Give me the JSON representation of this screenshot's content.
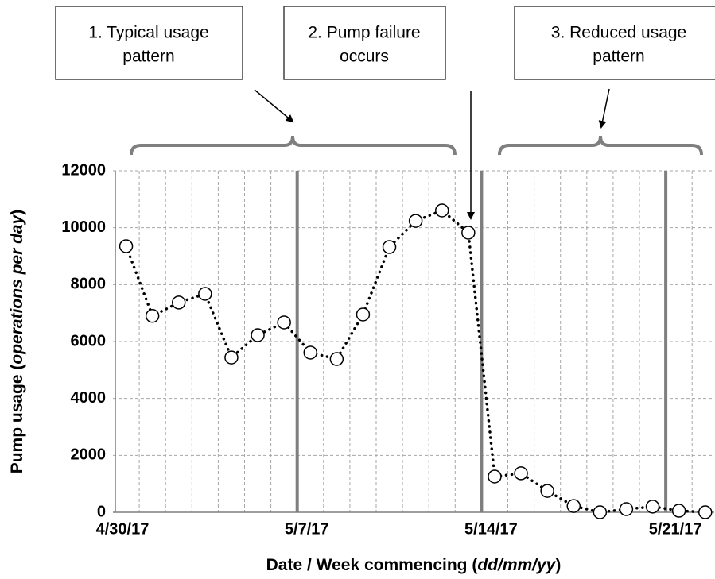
{
  "chart_data": {
    "type": "line",
    "xlabel": {
      "text": "Date / Week commencing  (",
      "italic": "dd/mm/yy",
      "end": ")"
    },
    "ylabel": {
      "text": "Pump usage (",
      "italic": "operations per day",
      "end": ")"
    },
    "categories": [
      "4/30/17",
      null,
      null,
      null,
      null,
      null,
      null,
      "5/7/17",
      null,
      null,
      null,
      null,
      null,
      null,
      "5/14/17",
      null,
      null,
      null,
      null,
      null,
      null,
      "5/21/17",
      null
    ],
    "values": [
      9350,
      6900,
      7370,
      7675,
      5440,
      6225,
      6670,
      5610,
      5385,
      6950,
      9320,
      10240,
      10605,
      9825,
      1256,
      1370,
      750,
      220,
      0,
      110,
      200,
      55,
      0
    ],
    "color": "#000000",
    "ylim": [
      0,
      12000
    ],
    "yticks": [
      0,
      2000,
      4000,
      6000,
      8000,
      10000,
      12000
    ],
    "grid": true,
    "annotations": [
      {
        "lines": [
          "1. Typical usage",
          "pattern"
        ]
      },
      {
        "lines": [
          "2. Pump failure",
          "occurs"
        ]
      },
      {
        "lines": [
          "3. Reduced usage",
          "pattern"
        ]
      }
    ]
  }
}
